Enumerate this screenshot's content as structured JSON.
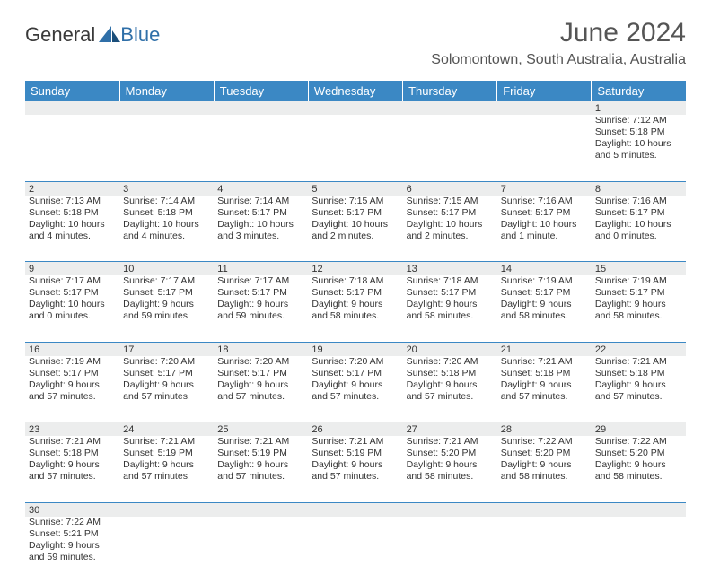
{
  "logo": {
    "general": "General",
    "blue": "Blue"
  },
  "title": "June 2024",
  "location": "Solomontown, South Australia, Australia",
  "colors": {
    "header_bg": "#3b88c4",
    "header_text": "#ffffff",
    "daynum_bg": "#eceded",
    "cell_border": "#3b88c4",
    "body_text": "#333333",
    "title_text": "#555555"
  },
  "weekdays": [
    "Sunday",
    "Monday",
    "Tuesday",
    "Wednesday",
    "Thursday",
    "Friday",
    "Saturday"
  ],
  "weeks": [
    {
      "nums": [
        "",
        "",
        "",
        "",
        "",
        "",
        "1"
      ],
      "cells": [
        null,
        null,
        null,
        null,
        null,
        null,
        {
          "sunrise": "Sunrise: 7:12 AM",
          "sunset": "Sunset: 5:18 PM",
          "daylight1": "Daylight: 10 hours",
          "daylight2": "and 5 minutes."
        }
      ]
    },
    {
      "nums": [
        "2",
        "3",
        "4",
        "5",
        "6",
        "7",
        "8"
      ],
      "cells": [
        {
          "sunrise": "Sunrise: 7:13 AM",
          "sunset": "Sunset: 5:18 PM",
          "daylight1": "Daylight: 10 hours",
          "daylight2": "and 4 minutes."
        },
        {
          "sunrise": "Sunrise: 7:14 AM",
          "sunset": "Sunset: 5:18 PM",
          "daylight1": "Daylight: 10 hours",
          "daylight2": "and 4 minutes."
        },
        {
          "sunrise": "Sunrise: 7:14 AM",
          "sunset": "Sunset: 5:17 PM",
          "daylight1": "Daylight: 10 hours",
          "daylight2": "and 3 minutes."
        },
        {
          "sunrise": "Sunrise: 7:15 AM",
          "sunset": "Sunset: 5:17 PM",
          "daylight1": "Daylight: 10 hours",
          "daylight2": "and 2 minutes."
        },
        {
          "sunrise": "Sunrise: 7:15 AM",
          "sunset": "Sunset: 5:17 PM",
          "daylight1": "Daylight: 10 hours",
          "daylight2": "and 2 minutes."
        },
        {
          "sunrise": "Sunrise: 7:16 AM",
          "sunset": "Sunset: 5:17 PM",
          "daylight1": "Daylight: 10 hours",
          "daylight2": "and 1 minute."
        },
        {
          "sunrise": "Sunrise: 7:16 AM",
          "sunset": "Sunset: 5:17 PM",
          "daylight1": "Daylight: 10 hours",
          "daylight2": "and 0 minutes."
        }
      ]
    },
    {
      "nums": [
        "9",
        "10",
        "11",
        "12",
        "13",
        "14",
        "15"
      ],
      "cells": [
        {
          "sunrise": "Sunrise: 7:17 AM",
          "sunset": "Sunset: 5:17 PM",
          "daylight1": "Daylight: 10 hours",
          "daylight2": "and 0 minutes."
        },
        {
          "sunrise": "Sunrise: 7:17 AM",
          "sunset": "Sunset: 5:17 PM",
          "daylight1": "Daylight: 9 hours",
          "daylight2": "and 59 minutes."
        },
        {
          "sunrise": "Sunrise: 7:17 AM",
          "sunset": "Sunset: 5:17 PM",
          "daylight1": "Daylight: 9 hours",
          "daylight2": "and 59 minutes."
        },
        {
          "sunrise": "Sunrise: 7:18 AM",
          "sunset": "Sunset: 5:17 PM",
          "daylight1": "Daylight: 9 hours",
          "daylight2": "and 58 minutes."
        },
        {
          "sunrise": "Sunrise: 7:18 AM",
          "sunset": "Sunset: 5:17 PM",
          "daylight1": "Daylight: 9 hours",
          "daylight2": "and 58 minutes."
        },
        {
          "sunrise": "Sunrise: 7:19 AM",
          "sunset": "Sunset: 5:17 PM",
          "daylight1": "Daylight: 9 hours",
          "daylight2": "and 58 minutes."
        },
        {
          "sunrise": "Sunrise: 7:19 AM",
          "sunset": "Sunset: 5:17 PM",
          "daylight1": "Daylight: 9 hours",
          "daylight2": "and 58 minutes."
        }
      ]
    },
    {
      "nums": [
        "16",
        "17",
        "18",
        "19",
        "20",
        "21",
        "22"
      ],
      "cells": [
        {
          "sunrise": "Sunrise: 7:19 AM",
          "sunset": "Sunset: 5:17 PM",
          "daylight1": "Daylight: 9 hours",
          "daylight2": "and 57 minutes."
        },
        {
          "sunrise": "Sunrise: 7:20 AM",
          "sunset": "Sunset: 5:17 PM",
          "daylight1": "Daylight: 9 hours",
          "daylight2": "and 57 minutes."
        },
        {
          "sunrise": "Sunrise: 7:20 AM",
          "sunset": "Sunset: 5:17 PM",
          "daylight1": "Daylight: 9 hours",
          "daylight2": "and 57 minutes."
        },
        {
          "sunrise": "Sunrise: 7:20 AM",
          "sunset": "Sunset: 5:17 PM",
          "daylight1": "Daylight: 9 hours",
          "daylight2": "and 57 minutes."
        },
        {
          "sunrise": "Sunrise: 7:20 AM",
          "sunset": "Sunset: 5:18 PM",
          "daylight1": "Daylight: 9 hours",
          "daylight2": "and 57 minutes."
        },
        {
          "sunrise": "Sunrise: 7:21 AM",
          "sunset": "Sunset: 5:18 PM",
          "daylight1": "Daylight: 9 hours",
          "daylight2": "and 57 minutes."
        },
        {
          "sunrise": "Sunrise: 7:21 AM",
          "sunset": "Sunset: 5:18 PM",
          "daylight1": "Daylight: 9 hours",
          "daylight2": "and 57 minutes."
        }
      ]
    },
    {
      "nums": [
        "23",
        "24",
        "25",
        "26",
        "27",
        "28",
        "29"
      ],
      "cells": [
        {
          "sunrise": "Sunrise: 7:21 AM",
          "sunset": "Sunset: 5:18 PM",
          "daylight1": "Daylight: 9 hours",
          "daylight2": "and 57 minutes."
        },
        {
          "sunrise": "Sunrise: 7:21 AM",
          "sunset": "Sunset: 5:19 PM",
          "daylight1": "Daylight: 9 hours",
          "daylight2": "and 57 minutes."
        },
        {
          "sunrise": "Sunrise: 7:21 AM",
          "sunset": "Sunset: 5:19 PM",
          "daylight1": "Daylight: 9 hours",
          "daylight2": "and 57 minutes."
        },
        {
          "sunrise": "Sunrise: 7:21 AM",
          "sunset": "Sunset: 5:19 PM",
          "daylight1": "Daylight: 9 hours",
          "daylight2": "and 57 minutes."
        },
        {
          "sunrise": "Sunrise: 7:21 AM",
          "sunset": "Sunset: 5:20 PM",
          "daylight1": "Daylight: 9 hours",
          "daylight2": "and 58 minutes."
        },
        {
          "sunrise": "Sunrise: 7:22 AM",
          "sunset": "Sunset: 5:20 PM",
          "daylight1": "Daylight: 9 hours",
          "daylight2": "and 58 minutes."
        },
        {
          "sunrise": "Sunrise: 7:22 AM",
          "sunset": "Sunset: 5:20 PM",
          "daylight1": "Daylight: 9 hours",
          "daylight2": "and 58 minutes."
        }
      ]
    },
    {
      "nums": [
        "30",
        "",
        "",
        "",
        "",
        "",
        ""
      ],
      "cells": [
        {
          "sunrise": "Sunrise: 7:22 AM",
          "sunset": "Sunset: 5:21 PM",
          "daylight1": "Daylight: 9 hours",
          "daylight2": "and 59 minutes."
        },
        null,
        null,
        null,
        null,
        null,
        null
      ]
    }
  ]
}
